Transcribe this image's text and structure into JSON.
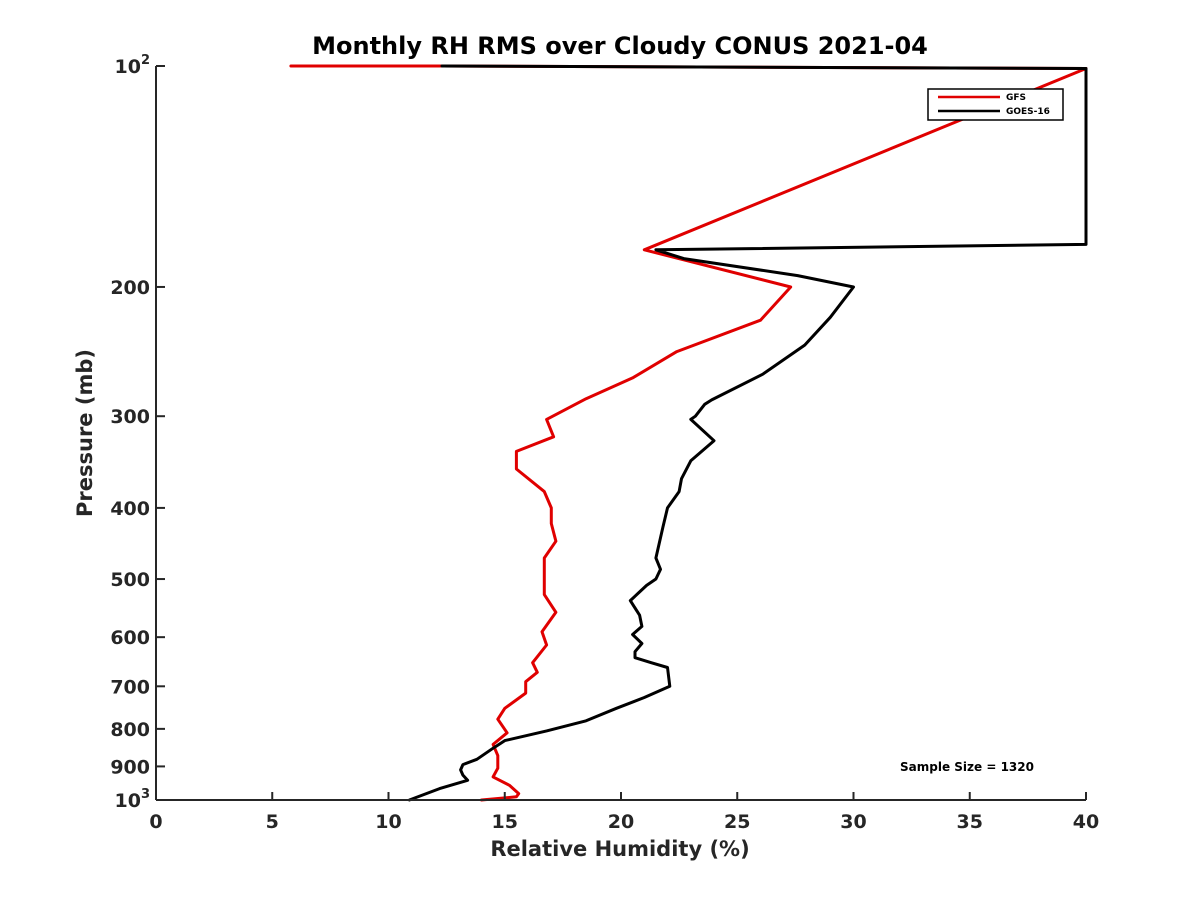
{
  "chart_data": {
    "type": "line",
    "title": "Monthly RH RMS over Cloudy CONUS  2021-04",
    "xlabel": "Relative Humidity (%)",
    "ylabel": "Pressure (mb)",
    "xlim": [
      0,
      40
    ],
    "ylim": [
      100,
      1000
    ],
    "y_scale": "log",
    "y_reversed": true,
    "grid": false,
    "legend_position": "top-right",
    "x_ticks": [
      "0",
      "5",
      "10",
      "15",
      "20",
      "25",
      "30",
      "35",
      "40"
    ],
    "y_ticks": [
      {
        "value": 100,
        "base": "10",
        "exp": "2"
      },
      {
        "value": 200,
        "label": "200"
      },
      {
        "value": 300,
        "label": "300"
      },
      {
        "value": 400,
        "label": "400"
      },
      {
        "value": 500,
        "label": "500"
      },
      {
        "value": 600,
        "label": "600"
      },
      {
        "value": 700,
        "label": "700"
      },
      {
        "value": 800,
        "label": "800"
      },
      {
        "value": 900,
        "label": "900"
      },
      {
        "value": 1000,
        "base": "10",
        "exp": "3"
      }
    ],
    "annotation": "Sample Size = 1320",
    "series": [
      {
        "name": "GFS",
        "color": "#e00000",
        "points": [
          [
            5.8,
            100
          ],
          [
            12.3,
            100
          ],
          [
            40,
            100.8
          ],
          [
            40,
            100.8
          ],
          [
            21.0,
            178
          ],
          [
            27.3,
            200
          ],
          [
            26.0,
            222
          ],
          [
            22.4,
            245
          ],
          [
            20.5,
            266
          ],
          [
            18.5,
            284
          ],
          [
            16.8,
            303
          ],
          [
            17.1,
            320
          ],
          [
            15.5,
            335
          ],
          [
            15.5,
            354
          ],
          [
            16.7,
            380
          ],
          [
            17.0,
            400
          ],
          [
            17.0,
            420
          ],
          [
            17.2,
            444
          ],
          [
            16.7,
            468
          ],
          [
            16.7,
            495
          ],
          [
            16.7,
            525
          ],
          [
            17.2,
            555
          ],
          [
            16.6,
            590
          ],
          [
            16.8,
            615
          ],
          [
            16.2,
            650
          ],
          [
            16.4,
            670
          ],
          [
            15.9,
            690
          ],
          [
            15.9,
            715
          ],
          [
            15.0,
            750
          ],
          [
            14.7,
            776
          ],
          [
            15.1,
            810
          ],
          [
            14.5,
            840
          ],
          [
            14.7,
            870
          ],
          [
            14.7,
            905
          ],
          [
            14.5,
            930
          ],
          [
            15.2,
            955
          ],
          [
            15.6,
            980
          ],
          [
            15.5,
            990
          ],
          [
            14.0,
            1000
          ]
        ]
      },
      {
        "name": "GOES-16",
        "color": "#000000",
        "points": [
          [
            12.3,
            100
          ],
          [
            40,
            100.8
          ],
          [
            40,
            175
          ],
          [
            21.5,
            178
          ],
          [
            22.7,
            183
          ],
          [
            27.6,
            193
          ],
          [
            30.0,
            200
          ],
          [
            29.0,
            220
          ],
          [
            27.9,
            240
          ],
          [
            26.1,
            263
          ],
          [
            23.9,
            285
          ],
          [
            23.6,
            289
          ],
          [
            23.2,
            300
          ],
          [
            23.0,
            303
          ],
          [
            24.0,
            324
          ],
          [
            23.0,
            345
          ],
          [
            22.6,
            365
          ],
          [
            22.5,
            380
          ],
          [
            22.0,
            400
          ],
          [
            21.8,
            425
          ],
          [
            21.5,
            468
          ],
          [
            21.7,
            485
          ],
          [
            21.5,
            500
          ],
          [
            21.1,
            510
          ],
          [
            20.4,
            535
          ],
          [
            20.8,
            560
          ],
          [
            20.9,
            580
          ],
          [
            20.5,
            595
          ],
          [
            20.9,
            612
          ],
          [
            20.6,
            628
          ],
          [
            20.6,
            640
          ],
          [
            21.3,
            650
          ],
          [
            22.0,
            660
          ],
          [
            22.1,
            700
          ],
          [
            21.0,
            725
          ],
          [
            19.8,
            750
          ],
          [
            18.5,
            780
          ],
          [
            16.8,
            805
          ],
          [
            15.0,
            830
          ],
          [
            14.5,
            850
          ],
          [
            13.8,
            880
          ],
          [
            13.2,
            895
          ],
          [
            13.1,
            910
          ],
          [
            13.2,
            925
          ],
          [
            13.4,
            940
          ],
          [
            12.2,
            965
          ],
          [
            10.9,
            1000
          ]
        ]
      }
    ]
  }
}
